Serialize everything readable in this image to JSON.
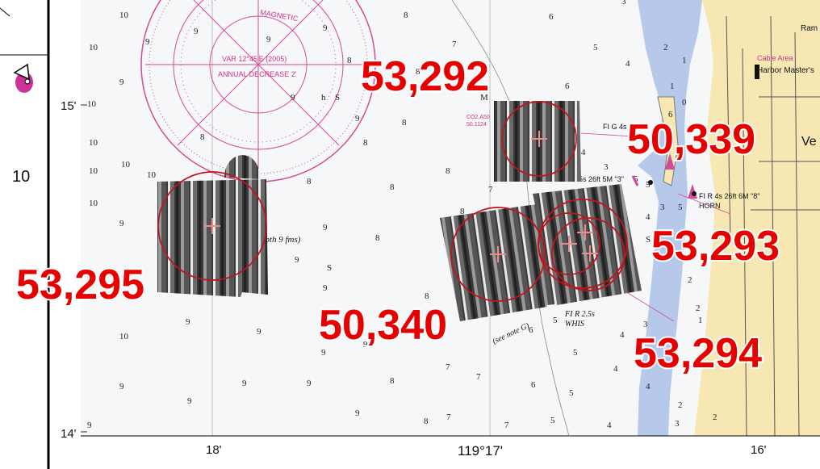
{
  "left_margin": {
    "lat_15": "15'",
    "lat_14": "14'",
    "label_10": "10"
  },
  "bottom_axis": {
    "lon_18": "18'",
    "lon_17": "119°17'",
    "lon_16": "16'"
  },
  "survey_labels": [
    {
      "id": "53,292"
    },
    {
      "id": "50,339"
    },
    {
      "id": "53,293"
    },
    {
      "id": "53,295"
    },
    {
      "id": "50,340"
    },
    {
      "id": "53,294"
    }
  ],
  "compass": {
    "magnetic": "MAGNETIC",
    "variation": "VAR 12°45'E (2005)",
    "annual": "ANNUAL DECREASE 2'"
  },
  "chart_notes": {
    "depth": "depth 9 fms)",
    "light_fl_g": "FI G 4s",
    "light_g25": "G 2.5s 26ft 5M \"3\"",
    "light_fl_r4": "FI R 4s 26ft 6M \"8\"",
    "horn": "HORN",
    "light_fl_r25": "FI R 2.5s",
    "whis": "WHIS",
    "see_note": "(see note G)",
    "cable_area": "Cable Area",
    "harbor_master": "Harbor Master's",
    "ram": "Ram",
    "ve": "Ve",
    "co": "CO2,A50",
    "co2": "50.1124"
  },
  "colors": {
    "land": "#f7e7b3",
    "shallow_water": "#b7c9ea",
    "label_red": "#e60000",
    "compass_pink": "#d24a9b",
    "survey_circle": "#c0141c"
  }
}
